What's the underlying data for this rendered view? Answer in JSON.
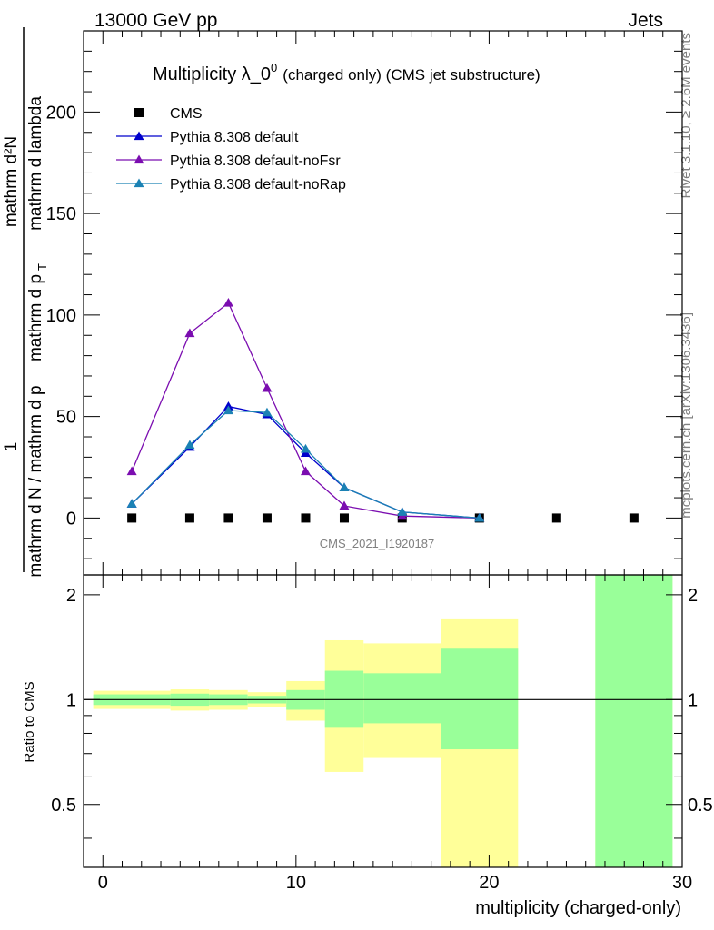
{
  "header": {
    "left": "13000 GeV pp",
    "right": "Jets"
  },
  "side_labels": {
    "top": "Rivet 3.1.10, ≥ 2.6M events",
    "bottom": "mcplots.cern.ch [arXiv:1306.3436]"
  },
  "watermark": "CMS_2021_I1920187",
  "chart_data": [
    {
      "type": "line",
      "title_main": "Multiplicity λ_0",
      "title_sup": "0",
      "title_note": "(charged only) (CMS jet substructure)",
      "ylabel_numerator": "mathrm d²N",
      "ylabel_denominator": "mathrm d N / mathrm d p",
      "ylabel_denominator_tail": "mathrm d p",
      "ylabel_denominator_end": "mathrm d lambda",
      "ylabel_numerator_unit": "1",
      "ylabel_sub": "T",
      "xlim": [
        -1,
        30
      ],
      "ylim": [
        -28,
        240
      ],
      "yticks": [
        0,
        50,
        100,
        150,
        200
      ],
      "legend": {
        "placement": "top-left",
        "entries": [
          {
            "label": "CMS",
            "marker": "square",
            "color": "#000000"
          },
          {
            "label": "Pythia 8.308 default",
            "marker": "triangle",
            "color": "#0000cc"
          },
          {
            "label": "Pythia 8.308 default-noFsr",
            "marker": "triangle",
            "color": "#7b0db0"
          },
          {
            "label": "Pythia 8.308 default-noRap",
            "marker": "triangle",
            "color": "#1b82b4"
          }
        ]
      },
      "series": [
        {
          "name": "CMS",
          "color": "#000000",
          "marker": "square",
          "x": [
            1.5,
            4.5,
            6.5,
            8.5,
            10.5,
            12.5,
            15.5,
            19.5,
            23.5,
            27.5
          ],
          "y": [
            0,
            0,
            0,
            0,
            0,
            0,
            0,
            0,
            0,
            0
          ]
        },
        {
          "name": "Pythia 8.308 default",
          "color": "#0000cc",
          "marker": "triangle",
          "x": [
            1.5,
            4.5,
            6.5,
            8.5,
            10.5,
            12.5,
            15.5,
            19.5
          ],
          "y": [
            7,
            35,
            55,
            51,
            32,
            15,
            3,
            0
          ]
        },
        {
          "name": "Pythia 8.308 default-noFsr",
          "color": "#7b0db0",
          "marker": "triangle",
          "x": [
            1.5,
            4.5,
            6.5,
            8.5,
            10.5,
            12.5,
            15.5,
            19.5
          ],
          "y": [
            23,
            91,
            106,
            64,
            23,
            6,
            1,
            0
          ]
        },
        {
          "name": "Pythia 8.308 default-noRap",
          "color": "#1b82b4",
          "marker": "triangle",
          "x": [
            1.5,
            4.5,
            6.5,
            8.5,
            10.5,
            12.5,
            15.5,
            19.5
          ],
          "y": [
            7,
            36,
            53,
            52,
            34,
            15,
            3,
            0
          ]
        }
      ]
    },
    {
      "type": "area",
      "ylabel": "Ratio to CMS",
      "xlabel": "multiplicity (charged-only)",
      "xlim": [
        -1,
        30
      ],
      "ylim": [
        0.33,
        2.28
      ],
      "yticks": [
        0.5,
        1,
        2
      ],
      "xticks": [
        0,
        10,
        20,
        30
      ],
      "reference_line": 1,
      "bands": [
        {
          "x0": -0.5,
          "x1": 3.5,
          "outer": [
            0.94,
            1.06
          ],
          "inner": [
            0.965,
            1.035
          ]
        },
        {
          "x0": 3.5,
          "x1": 5.5,
          "outer": [
            0.93,
            1.07
          ],
          "inner": [
            0.96,
            1.04
          ]
        },
        {
          "x0": 5.5,
          "x1": 7.5,
          "outer": [
            0.935,
            1.065
          ],
          "inner": [
            0.965,
            1.035
          ]
        },
        {
          "x0": 7.5,
          "x1": 9.5,
          "outer": [
            0.95,
            1.05
          ],
          "inner": [
            0.975,
            1.025
          ]
        },
        {
          "x0": 9.5,
          "x1": 11.5,
          "outer": [
            0.87,
            1.13
          ],
          "inner": [
            0.935,
            1.065
          ]
        },
        {
          "x0": 11.5,
          "x1": 13.5,
          "outer": [
            0.62,
            1.48
          ],
          "inner": [
            0.83,
            1.21
          ]
        },
        {
          "x0": 13.5,
          "x1": 17.5,
          "outer": [
            0.68,
            1.45
          ],
          "inner": [
            0.855,
            1.19
          ]
        },
        {
          "x0": 17.5,
          "x1": 21.5,
          "outer": [
            0.33,
            1.7
          ],
          "inner": [
            0.72,
            1.4
          ]
        },
        {
          "x0": 25.5,
          "x1": 29.5,
          "outer": [
            0.33,
            2.28
          ],
          "inner": [
            0.33,
            2.28
          ]
        }
      ]
    }
  ]
}
